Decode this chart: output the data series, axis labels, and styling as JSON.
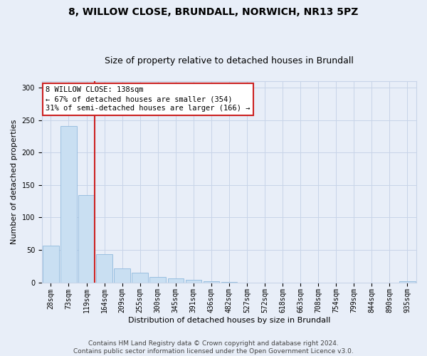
{
  "title_line1": "8, WILLOW CLOSE, BRUNDALL, NORWICH, NR13 5PZ",
  "title_line2": "Size of property relative to detached houses in Brundall",
  "xlabel": "Distribution of detached houses by size in Brundall",
  "ylabel": "Number of detached properties",
  "categories": [
    "28sqm",
    "73sqm",
    "119sqm",
    "164sqm",
    "209sqm",
    "255sqm",
    "300sqm",
    "345sqm",
    "391sqm",
    "436sqm",
    "482sqm",
    "527sqm",
    "572sqm",
    "618sqm",
    "663sqm",
    "708sqm",
    "754sqm",
    "799sqm",
    "844sqm",
    "890sqm",
    "935sqm"
  ],
  "values": [
    57,
    241,
    134,
    43,
    22,
    15,
    8,
    6,
    4,
    2,
    1,
    0,
    0,
    0,
    0,
    0,
    0,
    0,
    0,
    0,
    2
  ],
  "bar_color": "#c9dff2",
  "bar_edge_color": "#9abfe0",
  "vline_color": "#cc2222",
  "annotation_text": "8 WILLOW CLOSE: 138sqm\n← 67% of detached houses are smaller (354)\n31% of semi-detached houses are larger (166) →",
  "annotation_box_color": "white",
  "annotation_box_edge_color": "#cc2222",
  "ylim": [
    0,
    310
  ],
  "yticks": [
    0,
    50,
    100,
    150,
    200,
    250,
    300
  ],
  "grid_color": "#c8d4e8",
  "bg_color": "#e8eef8",
  "footer_text": "Contains HM Land Registry data © Crown copyright and database right 2024.\nContains public sector information licensed under the Open Government Licence v3.0.",
  "title_fontsize": 10,
  "subtitle_fontsize": 9,
  "tick_fontsize": 7,
  "ylabel_fontsize": 8,
  "xlabel_fontsize": 8,
  "footer_fontsize": 6.5,
  "annot_fontsize": 7.5
}
